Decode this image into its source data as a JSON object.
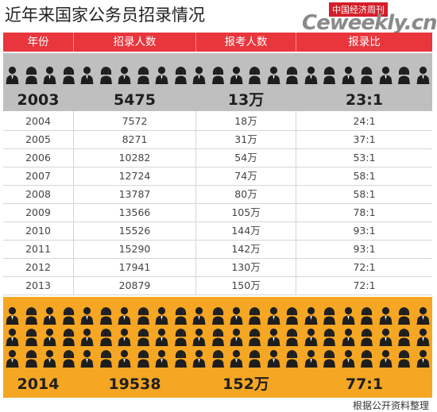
{
  "title": "近年来国家公务员招录情况",
  "logo": {
    "brand_cn": "中国经济周刊",
    "brand_en": "Ceweekly.cn"
  },
  "columns": [
    "年份",
    "招录人数",
    "报考人数",
    "报录比"
  ],
  "highlight_top": {
    "year": "2003",
    "hired": "5475",
    "applicants": "13万",
    "ratio": "23:1"
  },
  "rows": [
    {
      "year": "2004",
      "hired": "7572",
      "applicants": "18万",
      "ratio": "24:1"
    },
    {
      "year": "2005",
      "hired": "8271",
      "applicants": "31万",
      "ratio": "37:1"
    },
    {
      "year": "2006",
      "hired": "10282",
      "applicants": "54万",
      "ratio": "53:1"
    },
    {
      "year": "2007",
      "hired": "12724",
      "applicants": "74万",
      "ratio": "58:1"
    },
    {
      "year": "2008",
      "hired": "13787",
      "applicants": "80万",
      "ratio": "58:1"
    },
    {
      "year": "2009",
      "hired": "13566",
      "applicants": "105万",
      "ratio": "78:1"
    },
    {
      "year": "2010",
      "hired": "15526",
      "applicants": "144万",
      "ratio": "93:1"
    },
    {
      "year": "2011",
      "hired": "15290",
      "applicants": "142万",
      "ratio": "93:1"
    },
    {
      "year": "2012",
      "hired": "17941",
      "applicants": "130万",
      "ratio": "72:1"
    },
    {
      "year": "2013",
      "hired": "20879",
      "applicants": "150万",
      "ratio": "72:1"
    }
  ],
  "highlight_bottom": {
    "year": "2014",
    "hired": "19538",
    "applicants": "152万",
    "ratio": "77:1"
  },
  "source": "根据公开资料整理",
  "colors": {
    "header": "#e8363c",
    "band_2003": "#bfbfbf",
    "band_2014": "#f5a623",
    "icon": "#1e1e1e"
  },
  "chart_data": {
    "type": "table",
    "title": "近年来国家公务员招录情况",
    "columns": [
      "年份",
      "招录人数",
      "报考人数",
      "报录比"
    ],
    "x": [
      "2003",
      "2004",
      "2005",
      "2006",
      "2007",
      "2008",
      "2009",
      "2010",
      "2011",
      "2012",
      "2013",
      "2014"
    ],
    "series": [
      {
        "name": "招录人数",
        "values": [
          5475,
          7572,
          8271,
          10282,
          12724,
          13787,
          13566,
          15526,
          15290,
          17941,
          20879,
          19538
        ]
      },
      {
        "name": "报考人数",
        "values": [
          "13万",
          "18万",
          "31万",
          "54万",
          "74万",
          "80万",
          "105万",
          "144万",
          "142万",
          "130万",
          "150万",
          "152万"
        ]
      },
      {
        "name": "报录比",
        "values": [
          "23:1",
          "24:1",
          "37:1",
          "53:1",
          "58:1",
          "58:1",
          "78:1",
          "93:1",
          "93:1",
          "72:1",
          "72:1",
          "77:1"
        ]
      }
    ]
  }
}
